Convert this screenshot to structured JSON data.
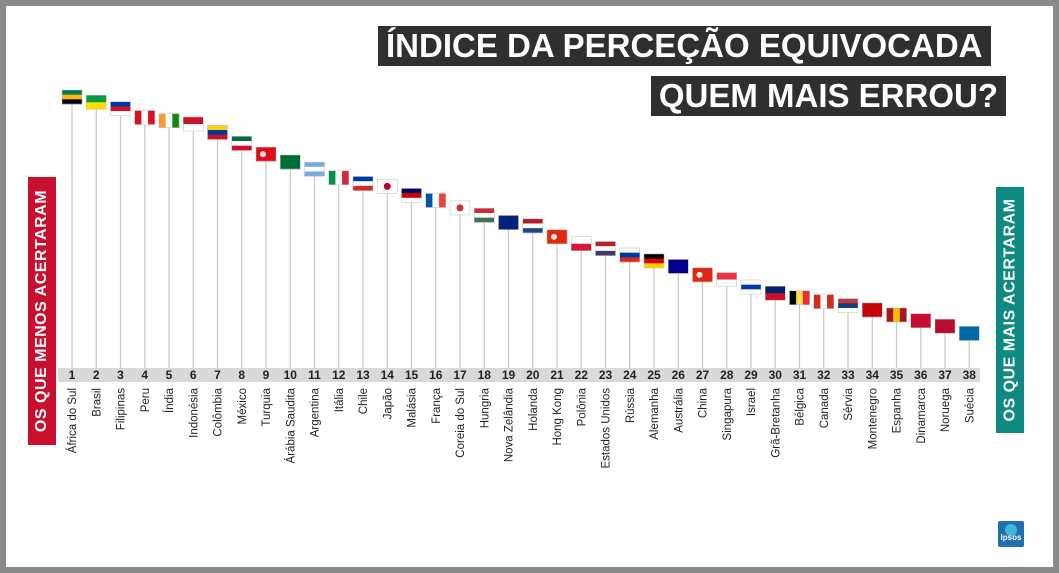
{
  "title_line1": "ÍNDICE DA PERCEÇÃO EQUIVOCADA",
  "title_line2": "QUEM MAIS ERROU?",
  "side_left": "OS QUE MENOS ACERTARAM",
  "side_right": "OS QUE MAIS ACERTARAM",
  "logo_text": "Ipsos",
  "chart_data": {
    "type": "ranking",
    "title": "ÍNDICE DA PERCEÇÃO EQUIVOCADA",
    "subtitle": "QUEM MAIS ERROU?",
    "xlabel": "",
    "ylabel": "",
    "ranks": [
      1,
      2,
      3,
      4,
      5,
      6,
      7,
      8,
      9,
      10,
      11,
      12,
      13,
      14,
      15,
      16,
      17,
      18,
      19,
      20,
      21,
      22,
      23,
      24,
      25,
      26,
      27,
      28,
      29,
      30,
      31,
      32,
      33,
      34,
      35,
      36,
      37,
      38
    ],
    "countries": [
      "África do Sul",
      "Brasil",
      "Filipinas",
      "Peru",
      "Índia",
      "Indonésia",
      "Colômbia",
      "México",
      "Turquia",
      "Árábia Saudita",
      "Argentina",
      "Itália",
      "Chile",
      "Japão",
      "Malásia",
      "França",
      "Coreia do Sul",
      "Hungria",
      "Nova Zelândia",
      "Holanda",
      "Hong Kong",
      "Polônia",
      "Estados Unidos",
      "Rússia",
      "Alemanha",
      "Austrália",
      "China",
      "Singapura",
      "Israel",
      "Grã-Bretanha",
      "Bélgica",
      "Canada",
      "Sérvia",
      "Montenegro",
      "Espanha",
      "Dinamarca",
      "Noruega",
      "Suécia"
    ],
    "flags": [
      "south-africa-flag",
      "brazil-flag",
      "philippines-flag",
      "peru-flag",
      "india-flag",
      "indonesia-flag",
      "colombia-flag",
      "mexico-flag",
      "turkey-flag",
      "saudi-arabia-flag",
      "argentina-flag",
      "italy-flag",
      "chile-flag",
      "japan-flag",
      "malaysia-flag",
      "france-flag",
      "south-korea-flag",
      "hungary-flag",
      "new-zealand-flag",
      "netherlands-flag",
      "hong-kong-flag",
      "poland-flag",
      "usa-flag",
      "russia-flag",
      "germany-flag",
      "australia-flag",
      "china-flag",
      "singapore-flag",
      "israel-flag",
      "uk-flag",
      "belgium-flag",
      "canada-flag",
      "serbia-flag",
      "montenegro-flag",
      "spain-flag",
      "denmark-flag",
      "norway-flag",
      "sweden-flag"
    ],
    "misperception_level": [
      1.0,
      0.978,
      0.951,
      0.914,
      0.901,
      0.887,
      0.852,
      0.806,
      0.761,
      0.728,
      0.698,
      0.662,
      0.638,
      0.626,
      0.588,
      0.567,
      0.536,
      0.505,
      0.475,
      0.461,
      0.415,
      0.386,
      0.366,
      0.339,
      0.314,
      0.291,
      0.256,
      0.236,
      0.205,
      0.179,
      0.16,
      0.144,
      0.127,
      0.109,
      0.088,
      0.064,
      0.041,
      0.011
    ],
    "colors": {
      "red": "#c8102e",
      "teal": "#0e8a83",
      "dark": "#2f2f2f",
      "stem": "#c7c7c7",
      "band": "#d9d9d9"
    }
  }
}
